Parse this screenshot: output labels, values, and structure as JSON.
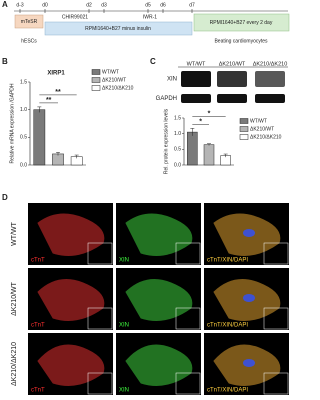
{
  "panel_labels": [
    "A",
    "B",
    "C",
    "D"
  ],
  "timeline": {
    "days": [
      "d-3",
      "d0",
      "d2",
      "d3",
      "d5",
      "d6",
      "d7"
    ],
    "stages": [
      "mTeSR",
      "hESCs",
      "CHIR99021",
      "RPMI1640+B27 minus insulin",
      "IWR-1",
      "RPMI1640+B27 every 2 day",
      "Beating cardiomyocytes"
    ]
  },
  "chart_data": [
    {
      "type": "bar",
      "title": "XIRP1",
      "y_label": "Relative mRNA expression /GAPDH",
      "series": [
        {
          "name": "WT/WT",
          "color": "#7a7a7a",
          "values": [
            1.0
          ],
          "errors": [
            0.05
          ]
        },
        {
          "name": "ΔK210/WT",
          "color": "#b5b5b5",
          "values": [
            0.2
          ],
          "errors": [
            0.03
          ]
        },
        {
          "name": "ΔK210/ΔK210",
          "color": "#ffffff",
          "values": [
            0.15
          ],
          "errors": [
            0.03
          ]
        }
      ],
      "ylim": [
        0,
        1.5
      ],
      "yticks": [
        {
          "value": 0,
          "label": "0.0"
        },
        {
          "value": 0.5,
          "label": "0.5"
        },
        {
          "value": 1,
          "label": "1.0"
        },
        {
          "value": 1.5,
          "label": "1.5"
        }
      ],
      "annotations": [
        "**",
        "**"
      ]
    },
    {
      "type": "bar",
      "y_label": "Rel. protein expression levels",
      "series": [
        {
          "name": "WT/WT",
          "color": "#7a7a7a",
          "values": [
            1.05
          ],
          "errors": [
            0.12
          ]
        },
        {
          "name": "ΔK210/WT",
          "color": "#b5b5b5",
          "values": [
            0.65
          ],
          "errors": [
            0.03
          ]
        },
        {
          "name": "ΔK210/ΔK210",
          "color": "#ffffff",
          "values": [
            0.3
          ],
          "errors": [
            0.05
          ]
        }
      ],
      "ylim": [
        0,
        1.5
      ],
      "yticks": [
        {
          "value": 0,
          "label": "0.0"
        },
        {
          "value": 0.5,
          "label": "0.5"
        },
        {
          "value": 1,
          "label": "1.0"
        },
        {
          "value": 1.5,
          "label": "1.5"
        }
      ],
      "annotations": [
        "*",
        "*"
      ]
    }
  ],
  "blot": {
    "lanes": [
      "WT/WT",
      "ΔK210/WT",
      "ΔK210/ΔK210"
    ],
    "proteins": [
      "XIN",
      "GAPDH"
    ]
  },
  "microscopy": {
    "rows": [
      "WT/WT",
      "ΔK210/WT",
      "ΔK210/ΔK210"
    ],
    "channels": [
      "cTnT",
      "XIN",
      "cTnT/XIN/DAPI"
    ]
  }
}
